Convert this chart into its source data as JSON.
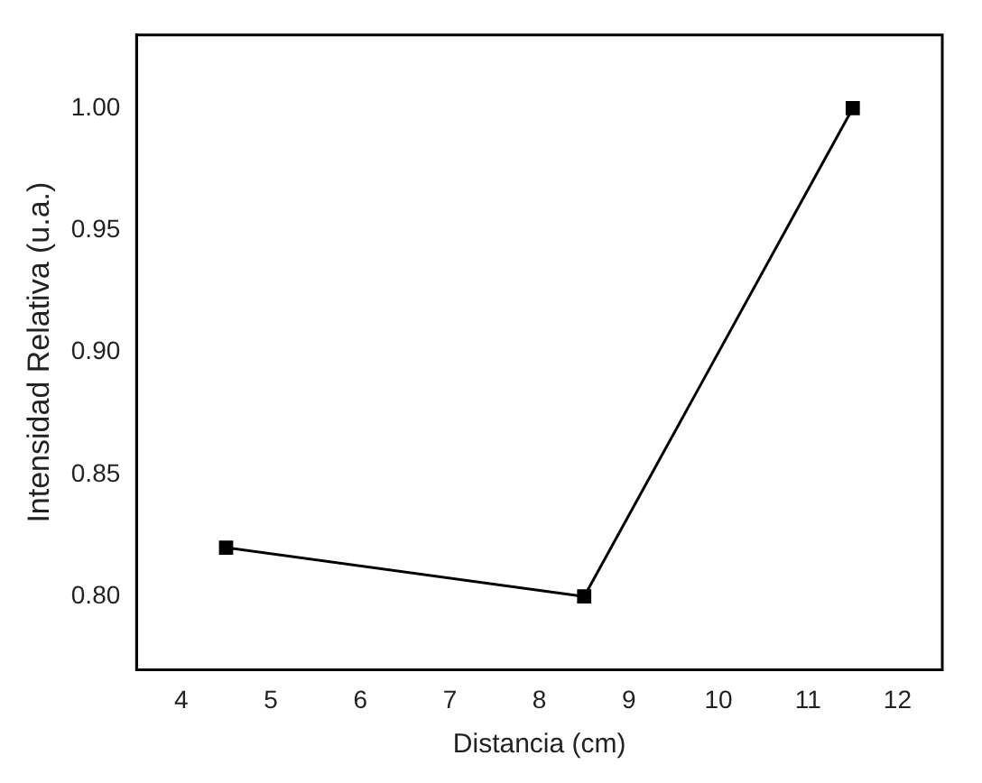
{
  "chart_data": {
    "type": "line",
    "xlabel": "Distancia (cm)",
    "ylabel": "Intensidad Relativa (u.a.)",
    "x": [
      4.5,
      8.5,
      11.5
    ],
    "series": [
      {
        "color": "#000000",
        "values": [
          0.82,
          0.8,
          1.0
        ]
      }
    ],
    "xlim": [
      3.5,
      12.5
    ],
    "xticks": [
      4,
      5,
      6,
      7,
      8,
      9,
      10,
      11,
      12
    ],
    "ylim": [
      0.77,
      1.03
    ],
    "yticks": [
      {
        "value": 0.8,
        "label": "0.80"
      },
      {
        "value": 0.85,
        "label": "0.85"
      },
      {
        "value": 0.9,
        "label": "0.90"
      },
      {
        "value": 0.95,
        "label": "0.95"
      },
      {
        "value": 1.0,
        "label": "1.00"
      }
    ],
    "grid": false,
    "legend": false,
    "marker": "square",
    "line_style": "solid"
  }
}
